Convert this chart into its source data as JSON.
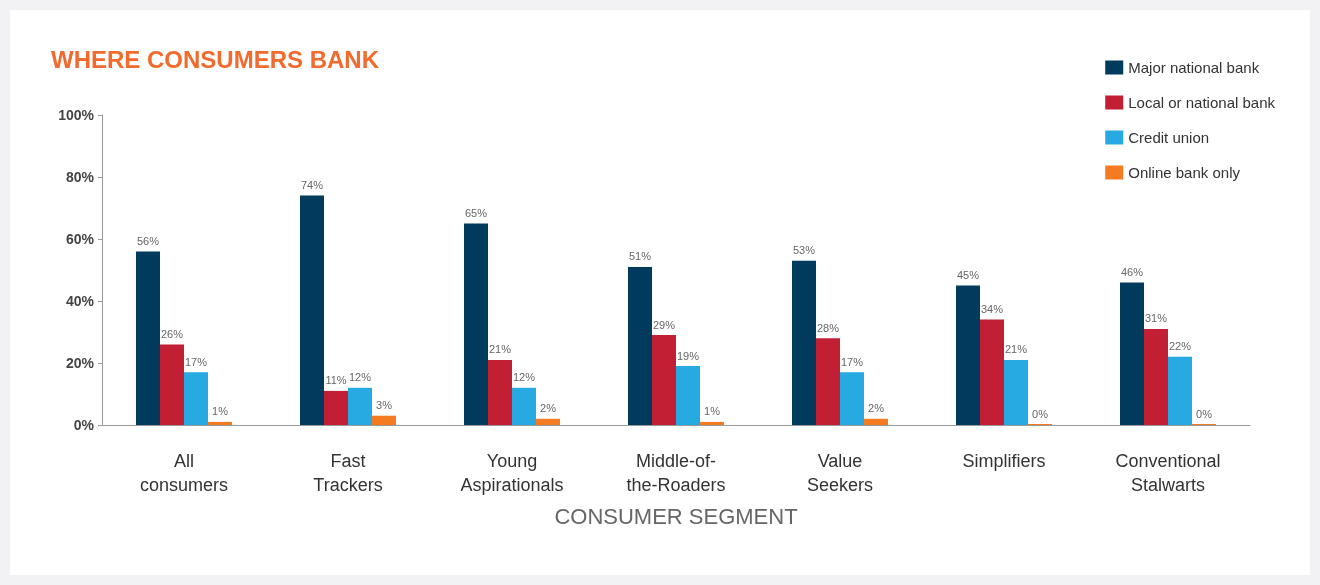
{
  "chart_data": {
    "type": "bar",
    "title": "WHERE CONSUMERS BANK",
    "xlabel": "CONSUMER SEGMENT",
    "categories": [
      "All consumers",
      "Fast Trackers",
      "Young Aspirationals",
      "Middle-of-the-Roaders",
      "Value Seekers",
      "Simplifiers",
      "Conventional Stalwarts"
    ],
    "series": [
      {
        "name": "Major national bank",
        "color": "#003a5d",
        "values": [
          56,
          74,
          65,
          51,
          53,
          45,
          46
        ],
        "value_labels": [
          "56%",
          "74%",
          "65%",
          "51%",
          "53%",
          "45%",
          "46%"
        ]
      },
      {
        "name": "Local or national bank",
        "color": "#c21f34",
        "values": [
          26,
          11,
          21,
          29,
          28,
          34,
          31
        ],
        "value_labels": [
          "26%",
          "11%",
          "21%",
          "29%",
          "28%",
          "34%",
          "31%"
        ]
      },
      {
        "name": "Credit union",
        "color": "#27a9e1",
        "values": [
          17,
          12,
          12,
          19,
          17,
          21,
          22
        ],
        "value_labels": [
          "17%",
          "12%",
          "12%",
          "19%",
          "17%",
          "21%",
          "22%"
        ]
      },
      {
        "name": "Online bank only",
        "color": "#f47b20",
        "values": [
          1,
          3,
          2,
          1,
          2,
          0,
          0
        ],
        "value_labels": [
          "1%",
          "3%",
          "2%",
          "1%",
          "2%",
          "0%",
          "0%"
        ]
      }
    ],
    "ylim": [
      0,
      100
    ],
    "yticks": [
      {
        "value": 0,
        "label": "0%"
      },
      {
        "value": 20,
        "label": "20%"
      },
      {
        "value": 40,
        "label": "40%"
      },
      {
        "value": 60,
        "label": "60%"
      },
      {
        "value": 80,
        "label": "80%"
      },
      {
        "value": 100,
        "label": "100%"
      }
    ],
    "grid": false,
    "legend": "top right"
  }
}
